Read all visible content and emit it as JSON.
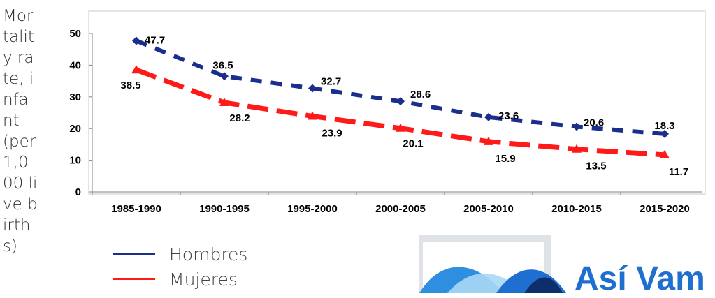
{
  "chart_data": {
    "type": "line",
    "ylabel": "Mortality rate, infant (per 1,000 live births)",
    "categories": [
      "1985-1990",
      "1990-1995",
      "1995-2000",
      "2000-2005",
      "2005-2010",
      "2010-2015",
      "2015-2020"
    ],
    "ylim": [
      0,
      50
    ],
    "yticks": [
      0,
      10,
      20,
      30,
      40,
      50
    ],
    "series": [
      {
        "name": "Hombres",
        "color": "#1a2f8c",
        "marker": "diamond",
        "values": [
          47.7,
          36.5,
          32.7,
          28.6,
          23.6,
          20.6,
          18.3
        ]
      },
      {
        "name": "Mujeres",
        "color": "#ff1a1a",
        "marker": "triangle",
        "values": [
          38.5,
          28.2,
          23.9,
          20.1,
          15.9,
          13.5,
          11.7
        ]
      }
    ],
    "grid": false,
    "legend": "bottom-left"
  },
  "logo": {
    "text": "Así Vam",
    "colors": {
      "primary": "#1f6fd1",
      "frame": "#dfe2e6"
    }
  }
}
